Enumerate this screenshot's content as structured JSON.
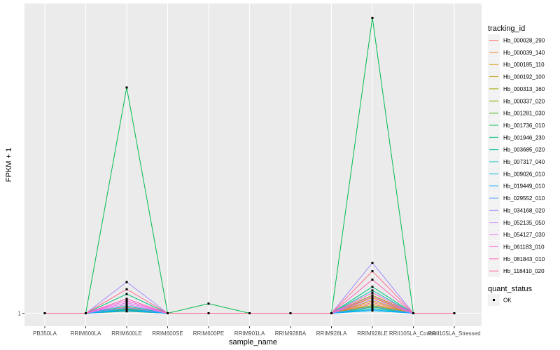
{
  "chart_data": {
    "type": "line",
    "title": "",
    "xlabel": "sample_name",
    "ylabel": "FPKM + 1",
    "y_ticks": [
      "1"
    ],
    "ylim": [
      0,
      100
    ],
    "categories": [
      "PB350LA",
      "RRIM600LA",
      "RRIM600LE",
      "RRIM600SE",
      "RRIM600PE",
      "RRIM901LA",
      "RRIM928BA",
      "RRIM928LA",
      "RRIM928LE",
      "RRII105LA_Control",
      "RRII105LA_Stressed"
    ],
    "series": [
      {
        "name": "Hb_000028_290",
        "color": "#F8766D",
        "values": [
          0,
          0,
          2.5,
          0,
          0,
          0,
          0,
          0,
          4.5,
          0,
          0
        ]
      },
      {
        "name": "Hb_000039_140",
        "color": "#EA8331",
        "values": [
          0,
          0,
          2.0,
          0,
          0,
          0,
          0,
          0,
          3.8,
          0,
          0
        ]
      },
      {
        "name": "Hb_000185_110",
        "color": "#D89000",
        "values": [
          0,
          0,
          1.6,
          0,
          0,
          0,
          0,
          0,
          6.5,
          0,
          0
        ]
      },
      {
        "name": "Hb_000192_100",
        "color": "#C09B00",
        "values": [
          0,
          0,
          1.2,
          0,
          0,
          0,
          0,
          0,
          5.2,
          0,
          0
        ]
      },
      {
        "name": "Hb_000313_160",
        "color": "#A3A500",
        "values": [
          0,
          0,
          1.0,
          0,
          0,
          0,
          0,
          0,
          7.5,
          0,
          0
        ]
      },
      {
        "name": "Hb_000337_020",
        "color": "#7CAE00",
        "values": [
          0,
          0,
          0.8,
          0,
          0,
          0,
          0,
          0,
          3.2,
          0,
          0
        ]
      },
      {
        "name": "Hb_001281_030",
        "color": "#39B600",
        "values": [
          0,
          0,
          1.4,
          0,
          0,
          0,
          0,
          0,
          2.6,
          0,
          0
        ]
      },
      {
        "name": "Hb_001736_010",
        "color": "#00BB4E",
        "values": [
          0,
          0,
          94,
          0,
          4.0,
          0,
          0,
          0,
          123,
          0,
          0
        ]
      },
      {
        "name": "Hb_001946_230",
        "color": "#00BF7D",
        "values": [
          0,
          0,
          8.0,
          0,
          0,
          0,
          0,
          0,
          11.0,
          0,
          0
        ]
      },
      {
        "name": "Hb_003685_020",
        "color": "#00C1A3",
        "values": [
          0,
          0,
          3.0,
          0,
          0,
          0,
          0,
          0,
          9.5,
          0,
          0
        ]
      },
      {
        "name": "Hb_007317_040",
        "color": "#00BFC4",
        "values": [
          0,
          0,
          1.8,
          0,
          0,
          0,
          0,
          0,
          2.0,
          0,
          0
        ]
      },
      {
        "name": "Hb_009026_010",
        "color": "#00B8E5",
        "values": [
          0,
          0,
          1.3,
          0,
          0,
          0,
          0,
          0,
          1.5,
          0,
          0
        ]
      },
      {
        "name": "Hb_019449_010",
        "color": "#00A9FF",
        "values": [
          0,
          0,
          0.9,
          0,
          0,
          0,
          0,
          0,
          1.1,
          0,
          0
        ]
      },
      {
        "name": "Hb_029552_010",
        "color": "#619CFF",
        "values": [
          0,
          0,
          2.2,
          0,
          0,
          0,
          0,
          0,
          2.8,
          0,
          0
        ]
      },
      {
        "name": "Hb_034168_020",
        "color": "#A58AFF",
        "values": [
          0,
          0,
          13.0,
          0,
          0,
          0,
          0,
          0,
          21.0,
          0,
          0
        ]
      },
      {
        "name": "Hb_052135_050",
        "color": "#C77CFF",
        "values": [
          0,
          0,
          3.6,
          0,
          0,
          0,
          0,
          0,
          5.8,
          0,
          0
        ]
      },
      {
        "name": "Hb_054127_030",
        "color": "#E76BF3",
        "values": [
          0,
          0,
          4.4,
          0,
          0,
          0,
          0,
          0,
          7.0,
          0,
          0
        ]
      },
      {
        "name": "Hb_061183_010",
        "color": "#FA62DB",
        "values": [
          0,
          0,
          5.2,
          0,
          0,
          0,
          0,
          0,
          8.5,
          0,
          0
        ]
      },
      {
        "name": "Hb_081843_010",
        "color": "#FF62BC",
        "values": [
          0,
          0,
          6.0,
          0,
          0,
          0,
          0,
          0,
          14.0,
          0,
          0
        ]
      },
      {
        "name": "Hb_118410_020",
        "color": "#FF6C91",
        "values": [
          0,
          0,
          10.0,
          0,
          0,
          0,
          0,
          0,
          17.5,
          0,
          0
        ]
      }
    ],
    "legend": {
      "title": "tracking_id",
      "position": "right"
    },
    "shape_legend": {
      "title": "quant_status",
      "items": [
        "OK"
      ]
    },
    "panel_background": "#EBEBEB",
    "grid_color": "#FFFFFF"
  }
}
